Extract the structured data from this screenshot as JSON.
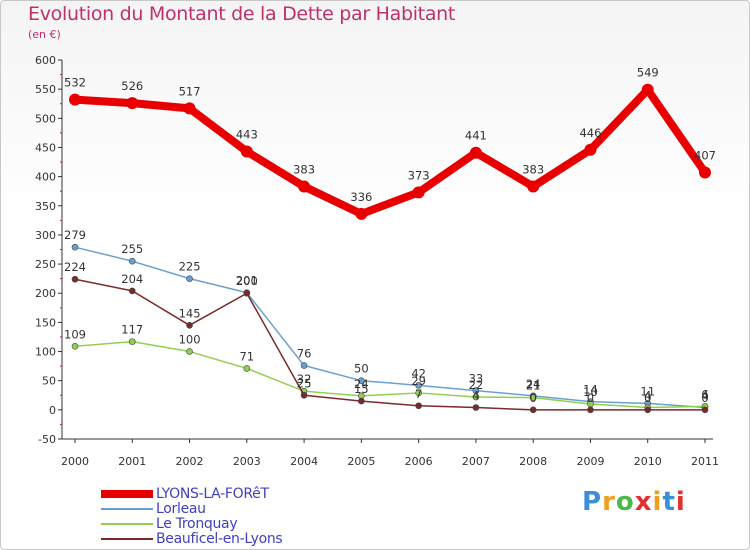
{
  "header": {
    "title": "Evolution du Montant de la Dette par Habitant",
    "subtitle": "(en €)"
  },
  "logo": {
    "text": "Proxiti",
    "colors": [
      "#3a8fd8",
      "#f0a020",
      "#4cb848",
      "#e03030",
      "#f0a020",
      "#3a8fd8",
      "#e03030"
    ]
  },
  "chart_data": {
    "type": "line",
    "title": "Evolution du Montant de la Dette par Habitant",
    "ylabel": "(en €)",
    "xlabel": "",
    "x": [
      "2000",
      "2001",
      "2002",
      "2003",
      "2004",
      "2005",
      "2006",
      "2007",
      "2008",
      "2009",
      "2010",
      "2011"
    ],
    "ylim": [
      -50,
      600
    ],
    "yticks": [
      -50,
      0,
      50,
      100,
      150,
      200,
      250,
      300,
      350,
      400,
      450,
      500,
      550,
      600
    ],
    "grid": false,
    "legend_position": "bottom-left",
    "series": [
      {
        "name": "LYONS-LA-FORêT",
        "color": "#e80000",
        "width": 8,
        "marker": 6,
        "values": [
          532,
          526,
          517,
          443,
          383,
          336,
          373,
          441,
          383,
          446,
          549,
          407
        ],
        "labels": [
          "532",
          "526",
          "517",
          "443",
          "383",
          "336",
          "373",
          "441",
          "383",
          "446",
          "549",
          "407"
        ]
      },
      {
        "name": "Lorleau",
        "color": "#6aa0d0",
        "width": 1.5,
        "marker": 3,
        "values": [
          279,
          255,
          225,
          201,
          76,
          50,
          42,
          33,
          24,
          14,
          11,
          4
        ],
        "labels": [
          "279",
          "255",
          "225",
          "201",
          "76",
          "50",
          "42",
          "33",
          "24",
          "14",
          "11",
          "4"
        ]
      },
      {
        "name": "Le Tronquay",
        "color": "#90d050",
        "width": 1.5,
        "marker": 3,
        "values": [
          109,
          117,
          100,
          71,
          32,
          24,
          29,
          22,
          21,
          10,
          4,
          6
        ],
        "labels": [
          "109",
          "117",
          "100",
          "71",
          "32",
          "24",
          "29",
          "22",
          "21",
          "10",
          "4",
          "6"
        ]
      },
      {
        "name": "Beauficel-en-Lyons",
        "color": "#7a2a2a",
        "width": 1.5,
        "marker": 3,
        "values": [
          224,
          204,
          145,
          200,
          25,
          15,
          7,
          4,
          0,
          0,
          0,
          0
        ],
        "labels": [
          "224",
          "204",
          "145",
          "200",
          "25",
          "15",
          "7",
          "4",
          "0",
          "0",
          "0",
          "0"
        ]
      }
    ]
  }
}
